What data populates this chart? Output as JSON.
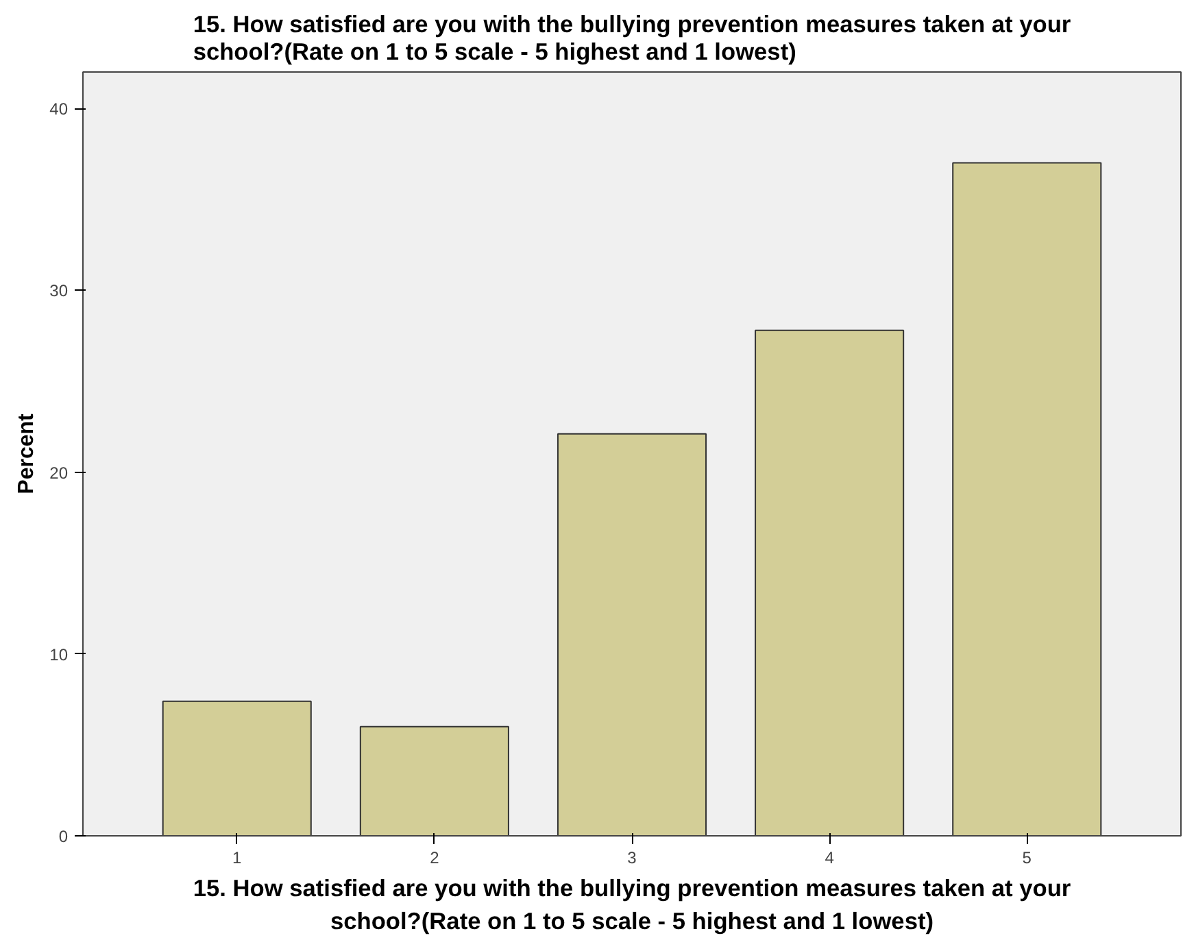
{
  "chart_data": {
    "type": "bar",
    "title": "15. How satisfied are you with the bullying prevention measures taken at your\nschool?(Rate on 1 to 5 scale - 5 highest and 1 lowest)",
    "xlabel": "15. How satisfied are you with the bullying prevention measures taken at your\nschool?(Rate on 1 to 5 scale - 5 highest and 1 lowest)",
    "ylabel": "Percent",
    "categories": [
      "1",
      "2",
      "3",
      "4",
      "5"
    ],
    "values": [
      7.4,
      6.0,
      22.1,
      27.8,
      37.0
    ],
    "color": "#d3ce97",
    "ylim": [
      0,
      42
    ],
    "yticks": [
      0,
      10,
      20,
      30,
      40
    ],
    "grid": false
  }
}
